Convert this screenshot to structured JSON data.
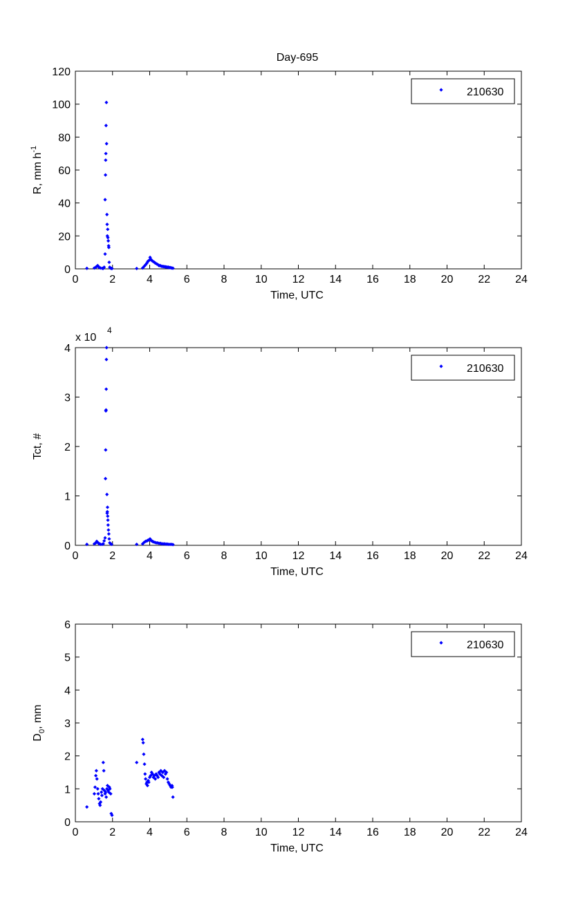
{
  "figure": {
    "title": "Day-695"
  },
  "chart_data": [
    {
      "type": "scatter",
      "title": "Day-695",
      "xlabel": "Time, UTC",
      "ylabel": "R, mm h",
      "ylabel_sup": "-1",
      "xlim": [
        0,
        24
      ],
      "ylim": [
        0,
        120
      ],
      "xticks": [
        "0",
        "2",
        "4",
        "6",
        "8",
        "10",
        "12",
        "14",
        "16",
        "18",
        "20",
        "22",
        "24"
      ],
      "yticks": [
        "0",
        "20",
        "40",
        "60",
        "80",
        "100",
        "120"
      ],
      "exponent_label": "",
      "grid": false,
      "legend_position": "top-right",
      "series": [
        {
          "name": "210630",
          "color": "#0000ff",
          "marker": "diamond",
          "x": [
            0.62,
            1.02,
            1.1,
            1.15,
            1.2,
            1.25,
            1.3,
            1.35,
            1.45,
            1.5,
            1.55,
            1.6,
            1.6,
            1.62,
            1.63,
            1.64,
            1.65,
            1.67,
            1.68,
            1.7,
            1.71,
            1.72,
            1.74,
            1.75,
            1.77,
            1.79,
            1.8,
            1.82,
            1.85,
            1.88,
            1.93,
            1.97,
            3.3,
            3.62,
            3.7,
            3.78,
            3.85,
            3.9,
            3.95,
            4.0,
            4.02,
            4.05,
            4.08,
            4.12,
            4.18,
            4.25,
            4.3,
            4.38,
            4.45,
            4.5,
            4.55,
            4.6,
            4.65,
            4.7,
            4.75,
            4.8,
            4.85,
            4.9,
            4.95,
            5.0,
            5.05,
            5.1,
            5.15,
            5.2,
            5.25
          ],
          "y": [
            0.3,
            0.5,
            1.0,
            1.5,
            2.0,
            1.2,
            0.8,
            0.5,
            0.3,
            0.3,
            1.0,
            9.0,
            42.0,
            57.0,
            66.0,
            70.0,
            87.0,
            101.0,
            76.0,
            33.0,
            27.0,
            20.0,
            24.0,
            19.0,
            17.0,
            14.0,
            13.0,
            4.0,
            1.0,
            0.5,
            0.3,
            0.2,
            0.2,
            0.5,
            1.5,
            2.5,
            3.5,
            4.5,
            5.0,
            5.5,
            7.0,
            6.0,
            5.5,
            5.0,
            4.5,
            4.0,
            3.5,
            3.0,
            2.5,
            2.0,
            2.0,
            1.8,
            1.5,
            1.5,
            1.4,
            1.3,
            1.2,
            1.1,
            1.0,
            1.0,
            0.8,
            0.8,
            0.6,
            0.5,
            0.4
          ]
        }
      ]
    },
    {
      "type": "scatter",
      "title": "",
      "xlabel": "Time, UTC",
      "ylabel": "Tct, #",
      "ylabel_sup": "",
      "xlim": [
        0,
        24
      ],
      "ylim": [
        0,
        40000
      ],
      "xticks": [
        "0",
        "2",
        "4",
        "6",
        "8",
        "10",
        "12",
        "14",
        "16",
        "18",
        "20",
        "22",
        "24"
      ],
      "yticks": [
        "0",
        "1",
        "2",
        "3",
        "4"
      ],
      "exponent_label": "x 10",
      "exponent_power": "4",
      "grid": false,
      "legend_position": "top-right",
      "series": [
        {
          "name": "210630",
          "color": "#0000ff",
          "marker": "diamond",
          "x": [
            0.62,
            1.02,
            1.1,
            1.15,
            1.2,
            1.25,
            1.3,
            1.35,
            1.45,
            1.5,
            1.55,
            1.6,
            1.62,
            1.63,
            1.64,
            1.65,
            1.66,
            1.67,
            1.68,
            1.7,
            1.71,
            1.72,
            1.73,
            1.74,
            1.75,
            1.76,
            1.78,
            1.8,
            1.82,
            1.85,
            1.9,
            1.95,
            3.3,
            3.62,
            3.7,
            3.78,
            3.85,
            3.9,
            3.95,
            4.0,
            4.02,
            4.05,
            4.1,
            4.15,
            4.2,
            4.28,
            4.35,
            4.42,
            4.5,
            4.58,
            4.65,
            4.72,
            4.8,
            4.88,
            4.95,
            5.02,
            5.1,
            5.18,
            5.25
          ],
          "y": [
            200,
            300,
            500,
            800,
            600,
            400,
            300,
            200,
            200,
            300,
            900,
            1500,
            13500,
            19300,
            27200,
            27400,
            31600,
            37600,
            40000,
            10300,
            6500,
            6800,
            7700,
            5900,
            5100,
            4100,
            3100,
            2300,
            1300,
            500,
            300,
            200,
            200,
            300,
            600,
            800,
            900,
            1000,
            1100,
            1200,
            1300,
            1100,
            900,
            800,
            700,
            600,
            500,
            500,
            400,
            400,
            300,
            300,
            300,
            250,
            250,
            200,
            200,
            200,
            150
          ]
        }
      ]
    },
    {
      "type": "scatter",
      "title": "",
      "xlabel": "Time, UTC",
      "ylabel": "D",
      "ylabel_sub": "0",
      "ylabel_suffix": ", mm",
      "xlim": [
        0,
        24
      ],
      "ylim": [
        0,
        6
      ],
      "xticks": [
        "0",
        "2",
        "4",
        "6",
        "8",
        "10",
        "12",
        "14",
        "16",
        "18",
        "20",
        "22",
        "24"
      ],
      "yticks": [
        "0",
        "1",
        "2",
        "3",
        "4",
        "5",
        "6"
      ],
      "exponent_label": "",
      "grid": false,
      "legend_position": "top-right",
      "series": [
        {
          "name": "210630",
          "color": "#0000ff",
          "marker": "diamond",
          "x": [
            0.62,
            1.02,
            1.06,
            1.1,
            1.13,
            1.16,
            1.2,
            1.23,
            1.26,
            1.3,
            1.33,
            1.36,
            1.4,
            1.43,
            1.46,
            1.5,
            1.53,
            1.56,
            1.6,
            1.63,
            1.66,
            1.7,
            1.73,
            1.76,
            1.8,
            1.83,
            1.86,
            1.9,
            1.93,
            1.97,
            3.3,
            3.62,
            3.65,
            3.68,
            3.72,
            3.75,
            3.78,
            3.82,
            3.85,
            3.88,
            3.92,
            3.95,
            4.0,
            4.05,
            4.1,
            4.15,
            4.2,
            4.25,
            4.3,
            4.35,
            4.4,
            4.45,
            4.5,
            4.55,
            4.6,
            4.65,
            4.7,
            4.75,
            4.8,
            4.85,
            4.9,
            4.95,
            5.0,
            5.05,
            5.1,
            5.15,
            5.2,
            5.22,
            5.25
          ],
          "y": [
            0.45,
            0.85,
            1.05,
            1.4,
            1.55,
            1.3,
            1.0,
            0.85,
            0.7,
            0.55,
            0.5,
            0.6,
            0.9,
            0.8,
            1.0,
            1.8,
            1.55,
            0.95,
            0.85,
            0.9,
            0.75,
            1.0,
            1.1,
            0.95,
            0.9,
            1.05,
            1.0,
            0.85,
            0.25,
            0.2,
            1.8,
            2.5,
            2.4,
            2.05,
            1.75,
            1.45,
            1.3,
            1.15,
            1.2,
            1.1,
            1.25,
            1.2,
            1.35,
            1.4,
            1.5,
            1.45,
            1.35,
            1.4,
            1.3,
            1.45,
            1.4,
            1.35,
            1.5,
            1.45,
            1.55,
            1.4,
            1.5,
            1.35,
            1.55,
            1.45,
            1.5,
            1.3,
            1.2,
            1.15,
            1.1,
            1.05,
            1.1,
            1.05,
            0.75
          ]
        }
      ]
    }
  ]
}
